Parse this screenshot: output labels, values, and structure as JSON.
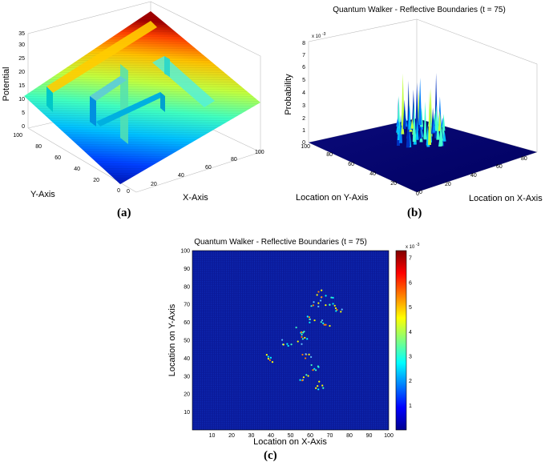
{
  "chart_data": [
    {
      "panel": "(a)",
      "type": "surface3d",
      "zlabel": "Potential",
      "xlabel": "X-Axis",
      "ylabel": "Y-Axis",
      "x_ticks": [
        "0",
        "20",
        "40",
        "60",
        "80",
        "100"
      ],
      "y_ticks": [
        "0",
        "20",
        "40",
        "60",
        "80",
        "100"
      ],
      "z_ticks": [
        "0",
        "5",
        "10",
        "15",
        "20",
        "25",
        "30",
        "35"
      ],
      "xlim": [
        0,
        100
      ],
      "ylim": [
        0,
        100
      ],
      "zlim": [
        0,
        35
      ],
      "colormap": "jet"
    },
    {
      "panel": "(b)",
      "type": "surface3d",
      "title": "Quantum Walker - Reflective Boundaries (t = 75)",
      "zlabel": "Probability",
      "xlabel": "Location on X-Axis",
      "ylabel": "Location on Y-Axis",
      "z_exponent": "x 10",
      "z_exponent_power": "-3",
      "x_ticks": [
        "0",
        "20",
        "40",
        "60",
        "80"
      ],
      "y_ticks": [
        "0",
        "20",
        "40",
        "60",
        "80",
        "100"
      ],
      "z_ticks": [
        "0",
        "1",
        "2",
        "3",
        "4",
        "5",
        "6",
        "7",
        "8"
      ],
      "xlim": [
        0,
        100
      ],
      "ylim": [
        0,
        100
      ],
      "zlim": [
        0,
        8
      ]
    },
    {
      "panel": "(c)",
      "type": "heatmap",
      "title": "Quantum Walker - Reflective Boundaries (t = 75)",
      "xlabel": "Location on X-Axis",
      "ylabel": "Location on Y-Axis",
      "x_ticks": [
        "10",
        "20",
        "30",
        "40",
        "50",
        "60",
        "70",
        "80",
        "90",
        "100"
      ],
      "y_ticks": [
        "10",
        "20",
        "30",
        "40",
        "50",
        "60",
        "70",
        "80",
        "90",
        "100"
      ],
      "xlim": [
        0,
        100
      ],
      "ylim": [
        0,
        100
      ],
      "colorbar_ticks": [
        "1",
        "2",
        "3",
        "4",
        "5",
        "6",
        "7"
      ],
      "colorbar_exponent": "x 10",
      "colorbar_exponent_power": "-3",
      "colorbar_range": [
        0,
        7.3
      ]
    }
  ],
  "captions": {
    "a": "(a)",
    "b": "(b)",
    "c": "(c)"
  }
}
